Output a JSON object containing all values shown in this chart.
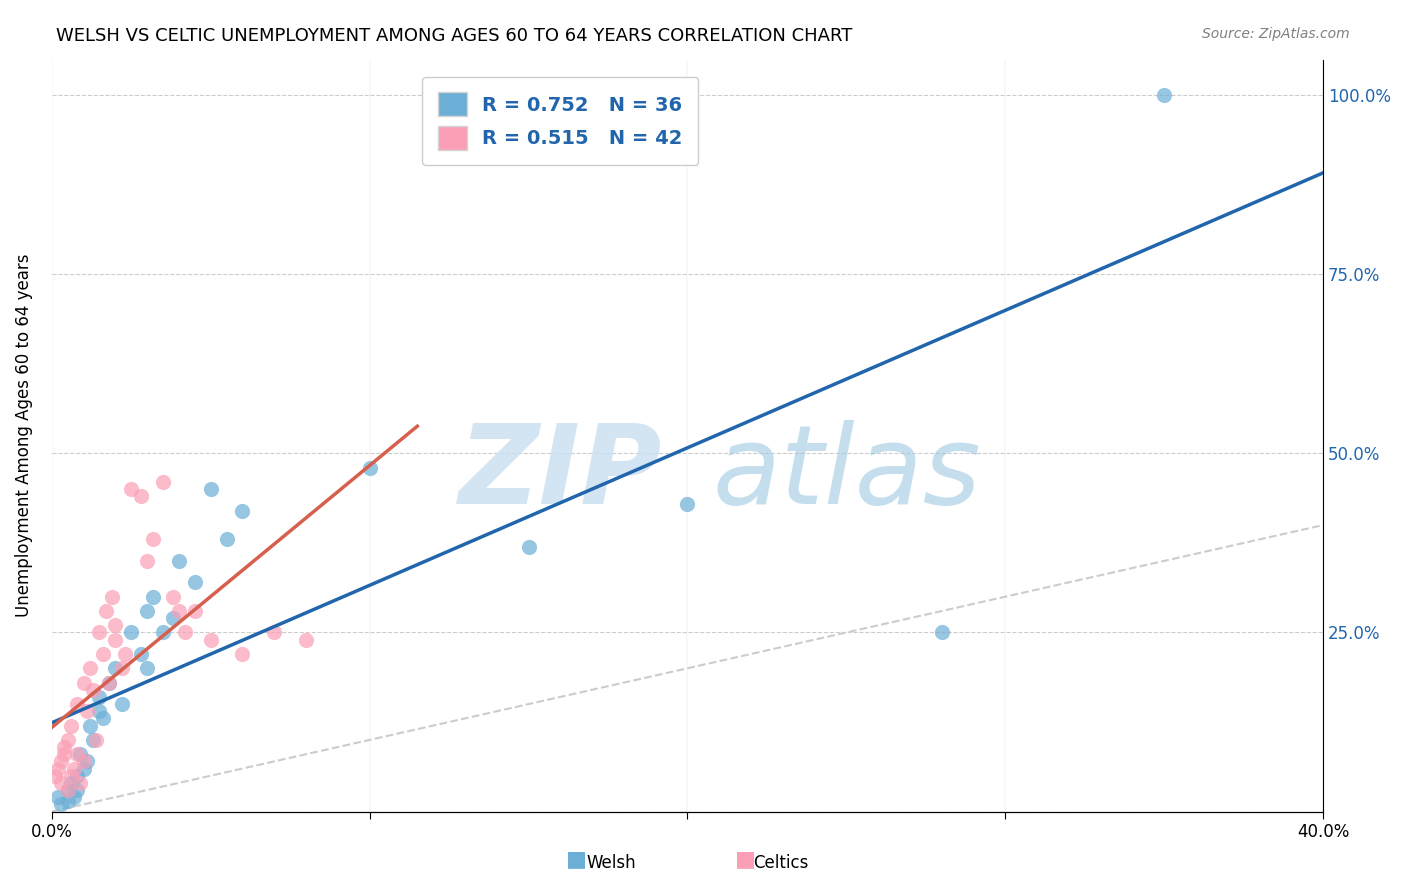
{
  "title": "WELSH VS CELTIC UNEMPLOYMENT AMONG AGES 60 TO 64 YEARS CORRELATION CHART",
  "source": "Source: ZipAtlas.com",
  "ylabel": "Unemployment Among Ages 60 to 64 years",
  "background_color": "#ffffff",
  "xlim": [
    0.0,
    0.4
  ],
  "ylim": [
    0.0,
    1.05
  ],
  "xticks": [
    0.0,
    0.1,
    0.2,
    0.3,
    0.4
  ],
  "xticklabels": [
    "0.0%",
    "",
    "",
    "",
    "40.0%"
  ],
  "yticks": [
    0.0,
    0.25,
    0.5,
    0.75,
    1.0
  ],
  "yticklabels_right": [
    "",
    "25.0%",
    "50.0%",
    "75.0%",
    "100.0%"
  ],
  "welsh_color": "#6baed6",
  "celtics_color": "#fa9fb5",
  "welsh_line_color": "#2166ac",
  "celtics_line_color": "#d6604d",
  "diagonal_color": "#cccccc",
  "welsh_R": 0.752,
  "welsh_N": 36,
  "celtics_R": 0.515,
  "celtics_N": 42,
  "welsh_scatter_x": [
    0.002,
    0.003,
    0.005,
    0.005,
    0.006,
    0.007,
    0.008,
    0.008,
    0.009,
    0.01,
    0.011,
    0.012,
    0.013,
    0.015,
    0.015,
    0.016,
    0.018,
    0.02,
    0.022,
    0.025,
    0.028,
    0.03,
    0.03,
    0.032,
    0.035,
    0.038,
    0.04,
    0.045,
    0.05,
    0.055,
    0.06,
    0.1,
    0.15,
    0.2,
    0.28,
    0.35
  ],
  "welsh_scatter_y": [
    0.02,
    0.01,
    0.03,
    0.015,
    0.04,
    0.02,
    0.05,
    0.03,
    0.08,
    0.06,
    0.07,
    0.12,
    0.1,
    0.14,
    0.16,
    0.13,
    0.18,
    0.2,
    0.15,
    0.25,
    0.22,
    0.2,
    0.28,
    0.3,
    0.25,
    0.27,
    0.35,
    0.32,
    0.45,
    0.38,
    0.42,
    0.48,
    0.37,
    0.43,
    0.25,
    1.0
  ],
  "celtics_scatter_x": [
    0.001,
    0.002,
    0.003,
    0.003,
    0.004,
    0.004,
    0.005,
    0.005,
    0.006,
    0.006,
    0.007,
    0.008,
    0.008,
    0.009,
    0.01,
    0.01,
    0.011,
    0.012,
    0.013,
    0.014,
    0.015,
    0.016,
    0.017,
    0.018,
    0.019,
    0.02,
    0.02,
    0.022,
    0.023,
    0.025,
    0.028,
    0.03,
    0.032,
    0.035,
    0.038,
    0.04,
    0.042,
    0.045,
    0.05,
    0.06,
    0.07,
    0.08
  ],
  "celtics_scatter_y": [
    0.05,
    0.06,
    0.04,
    0.07,
    0.08,
    0.09,
    0.03,
    0.1,
    0.05,
    0.12,
    0.06,
    0.08,
    0.15,
    0.04,
    0.07,
    0.18,
    0.14,
    0.2,
    0.17,
    0.1,
    0.25,
    0.22,
    0.28,
    0.18,
    0.3,
    0.24,
    0.26,
    0.2,
    0.22,
    0.45,
    0.44,
    0.35,
    0.38,
    0.46,
    0.3,
    0.28,
    0.25,
    0.28,
    0.24,
    0.22,
    0.25,
    0.24
  ]
}
